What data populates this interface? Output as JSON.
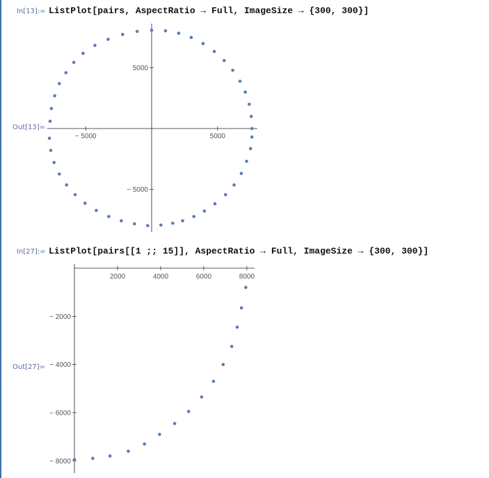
{
  "cells": [
    {
      "in_label": "In[13]:=",
      "input": "ListPlot[pairs, AspectRatio → Full, ImageSize → {300, 300}]",
      "out_label": "Out[13]="
    },
    {
      "in_label": "In[27]:=",
      "input": "ListPlot[pairs[[1 ;; 15]], AspectRatio → Full, ImageSize → {300, 300}]",
      "out_label": "Out[27]="
    }
  ],
  "colors": {
    "points": "#5b7cb5",
    "axes": "#222222",
    "labels": "#5a6ea3"
  },
  "chart_data": [
    {
      "type": "scatter",
      "title": "",
      "xlabel": "",
      "ylabel": "",
      "xlim": [
        -7700,
        7700
      ],
      "ylim": [
        -8300,
        8300
      ],
      "x_ticks": [
        -5000,
        5000
      ],
      "y_ticks": [
        -5000,
        5000
      ],
      "x_tick_labels": [
        "− 5000",
        "5000"
      ],
      "y_tick_labels": [
        "− 5000",
        "5000"
      ],
      "points": [
        [
          7600,
          0
        ],
        [
          7550,
          1000
        ],
        [
          7400,
          2000
        ],
        [
          7100,
          3000
        ],
        [
          6700,
          3900
        ],
        [
          6150,
          4800
        ],
        [
          5500,
          5600
        ],
        [
          4750,
          6350
        ],
        [
          3900,
          7000
        ],
        [
          3000,
          7500
        ],
        [
          2050,
          7850
        ],
        [
          1050,
          8050
        ],
        [
          0,
          8100
        ],
        [
          -1100,
          8000
        ],
        [
          -2200,
          7750
        ],
        [
          -3300,
          7350
        ],
        [
          -4300,
          6850
        ],
        [
          -5200,
          6200
        ],
        [
          -5900,
          5450
        ],
        [
          -6500,
          4600
        ],
        [
          -7000,
          3700
        ],
        [
          -7350,
          2700
        ],
        [
          -7600,
          1650
        ],
        [
          -7700,
          600
        ],
        [
          -7750,
          -800
        ],
        [
          -7650,
          -1800
        ],
        [
          -7400,
          -2800
        ],
        [
          -7000,
          -3750
        ],
        [
          -6450,
          -4650
        ],
        [
          -5800,
          -5450
        ],
        [
          -5050,
          -6150
        ],
        [
          -4200,
          -6750
        ],
        [
          -3250,
          -7250
        ],
        [
          -2300,
          -7600
        ],
        [
          -1300,
          -7850
        ],
        [
          -300,
          -8000
        ],
        [
          700,
          -7950
        ],
        [
          1600,
          -7800
        ],
        [
          2350,
          -7600
        ],
        [
          3200,
          -7250
        ],
        [
          4000,
          -6800
        ],
        [
          4800,
          -6200
        ],
        [
          5600,
          -5450
        ],
        [
          6250,
          -4650
        ],
        [
          6800,
          -3700
        ],
        [
          7200,
          -2700
        ],
        [
          7500,
          -1650
        ],
        [
          7600,
          -700
        ]
      ]
    },
    {
      "type": "scatter",
      "title": "",
      "xlabel": "",
      "ylabel": "",
      "xlim": [
        0,
        8100
      ],
      "ylim": [
        -8050,
        0
      ],
      "x_ticks": [
        2000,
        4000,
        6000,
        8000
      ],
      "y_ticks": [
        -2000,
        -4000,
        -6000,
        -8000
      ],
      "x_tick_labels": [
        "2000",
        "4000",
        "6000",
        "8000"
      ],
      "y_tick_labels": [
        "− 2000",
        "− 4000",
        "− 6000",
        "− 8000"
      ],
      "points": [
        [
          7950,
          -800
        ],
        [
          7750,
          -1650
        ],
        [
          7550,
          -2450
        ],
        [
          7300,
          -3250
        ],
        [
          6900,
          -4000
        ],
        [
          6450,
          -4700
        ],
        [
          5900,
          -5350
        ],
        [
          5300,
          -5950
        ],
        [
          4650,
          -6450
        ],
        [
          3950,
          -6900
        ],
        [
          3250,
          -7300
        ],
        [
          2500,
          -7600
        ],
        [
          1650,
          -7800
        ],
        [
          850,
          -7900
        ],
        [
          0,
          -7950
        ]
      ]
    }
  ]
}
